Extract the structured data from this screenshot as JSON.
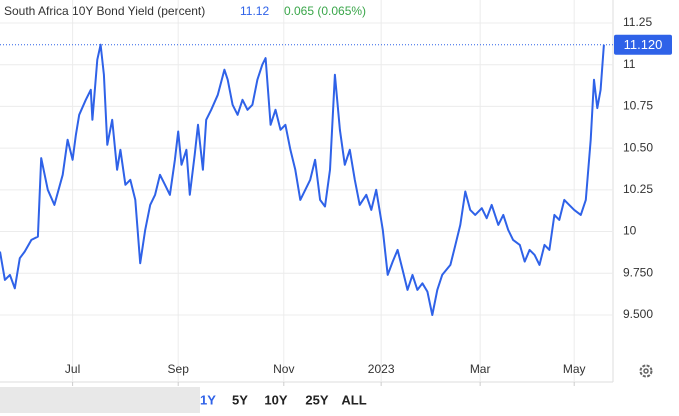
{
  "chart_data": {
    "type": "line",
    "title": "South Africa 10Y Bond Yield (percent)",
    "last_value": 11.12,
    "change_text": "0.065 (0.065%)",
    "last_label": {
      "value": 11.12,
      "label": "11.120"
    },
    "color": "#2f62e8",
    "x": [
      0,
      3,
      6,
      9,
      12,
      15,
      19,
      23,
      25,
      29,
      33,
      38,
      41,
      44,
      46,
      48,
      52,
      55,
      56,
      59,
      61,
      63,
      65,
      68,
      71,
      73,
      76,
      79,
      82,
      85,
      88,
      91,
      94,
      97,
      100,
      103,
      106,
      108,
      110,
      113,
      115,
      118,
      120,
      123,
      125,
      128,
      132,
      136,
      138,
      141,
      144,
      147,
      150,
      153,
      156,
      159,
      161,
      164,
      167,
      170,
      173,
      176,
      179,
      182,
      185,
      188,
      191,
      194,
      197,
      200,
      203,
      206,
      209,
      212,
      215,
      218,
      222,
      225,
      228,
      232,
      235,
      238,
      241,
      244,
      247,
      250,
      253,
      256,
      259,
      262,
      265,
      268,
      273,
      276,
      279,
      282,
      285,
      288,
      292,
      295,
      298,
      302,
      305,
      308,
      311,
      315,
      318,
      321,
      324,
      327,
      330,
      333,
      336,
      339,
      342,
      345,
      348,
      352,
      355,
      358,
      360,
      362,
      364,
      366
    ],
    "values": [
      9.88,
      9.71,
      9.74,
      9.66,
      9.84,
      9.88,
      9.95,
      9.97,
      10.44,
      10.25,
      10.16,
      10.34,
      10.55,
      10.43,
      10.58,
      10.7,
      10.79,
      10.85,
      10.67,
      11.03,
      11.12,
      10.94,
      10.52,
      10.67,
      10.37,
      10.49,
      10.28,
      10.31,
      10.19,
      9.81,
      10.01,
      10.16,
      10.22,
      10.34,
      10.28,
      10.22,
      10.43,
      10.6,
      10.4,
      10.49,
      10.22,
      10.46,
      10.64,
      10.37,
      10.67,
      10.73,
      10.82,
      10.97,
      10.91,
      10.76,
      10.7,
      10.79,
      10.73,
      10.76,
      10.91,
      11.0,
      11.04,
      10.64,
      10.73,
      10.61,
      10.64,
      10.49,
      10.37,
      10.19,
      10.25,
      10.31,
      10.43,
      10.19,
      10.15,
      10.37,
      10.94,
      10.61,
      10.4,
      10.49,
      10.31,
      10.16,
      10.22,
      10.13,
      10.25,
      10.01,
      9.74,
      9.82,
      9.89,
      9.77,
      9.65,
      9.74,
      9.65,
      9.69,
      9.64,
      9.5,
      9.65,
      9.74,
      9.8,
      9.92,
      10.04,
      10.24,
      10.13,
      10.1,
      10.14,
      10.08,
      10.16,
      10.04,
      10.1,
      10.01,
      9.95,
      9.92,
      9.82,
      9.89,
      9.86,
      9.8,
      9.92,
      9.89,
      10.1,
      10.07,
      10.19,
      10.16,
      10.13,
      10.1,
      10.19,
      10.55,
      10.91,
      10.74,
      10.85,
      11.12
    ],
    "xlim": [
      0,
      372
    ],
    "xticks": [
      {
        "value": 44,
        "label": "Jul"
      },
      {
        "value": 108,
        "label": "Sep"
      },
      {
        "value": 172,
        "label": "Nov"
      },
      {
        "value": 231,
        "label": "2023"
      },
      {
        "value": 291,
        "label": "Mar"
      },
      {
        "value": 348,
        "label": "May"
      }
    ],
    "ylim": [
      9.254,
      11.388
    ],
    "yticks": [
      11.25,
      11,
      10.75,
      {
        "value": 10.5,
        "label": "10.50"
      },
      10.25,
      10,
      {
        "value": 9.75,
        "label": "9.750"
      },
      {
        "value": 9.5,
        "label": "9.500"
      }
    ],
    "grid": true,
    "ranges": [
      "1Y",
      "5Y",
      "10Y",
      "25Y",
      "ALL"
    ]
  }
}
